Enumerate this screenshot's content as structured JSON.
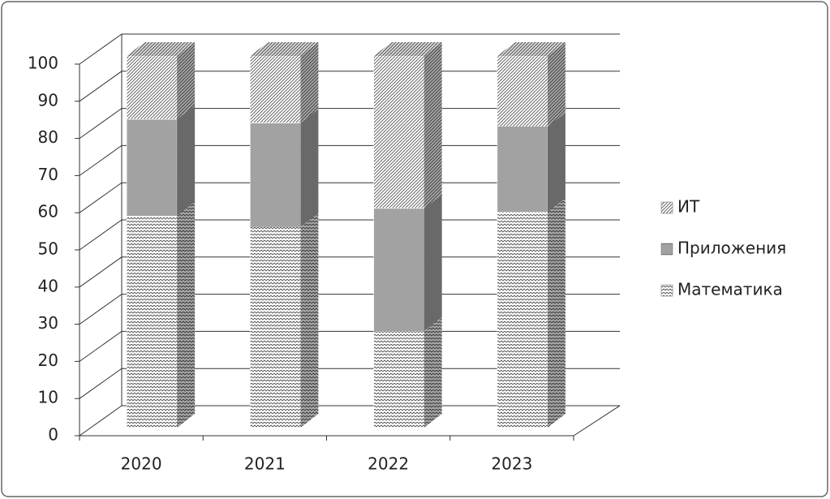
{
  "chart_data": {
    "type": "bar3d_stacked",
    "categories": [
      "2020",
      "2021",
      "2022",
      "2023"
    ],
    "series": [
      {
        "name": "Математика",
        "color": "#555555",
        "pattern": "zigzag",
        "values": [
          57,
          54,
          26,
          58
        ]
      },
      {
        "name": "Приложения",
        "color": "#444444",
        "pattern": "hlines",
        "values": [
          26,
          28,
          33,
          23
        ]
      },
      {
        "name": "ИТ",
        "color": "#555555",
        "pattern": "diagonal",
        "values": [
          17,
          18,
          41,
          19
        ]
      }
    ],
    "ylim": [
      0,
      100
    ],
    "yticks": [
      0,
      10,
      20,
      30,
      40,
      50,
      60,
      70,
      80,
      90,
      100
    ],
    "grid": true,
    "legend": "right"
  }
}
